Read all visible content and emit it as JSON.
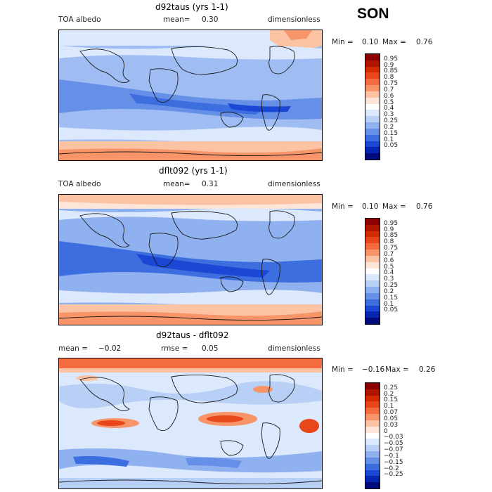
{
  "season": "SON",
  "panels": [
    {
      "title": "d92taus (yrs 1-1)",
      "left_label": "TOA albedo",
      "stat_label": "mean=",
      "stat_value": "0.30",
      "units": "dimensionless",
      "minmax": {
        "min_label": "Min =",
        "min": "0.10",
        "max_label": "Max =",
        "max": "0.76"
      },
      "colorbar": {
        "ticks": [
          "0.95",
          "0.9",
          "0.85",
          "0.8",
          "0.75",
          "0.7",
          "0.6",
          "0.5",
          "0.4",
          "0.3",
          "0.25",
          "0.2",
          "0.15",
          "0.1",
          "0.05"
        ],
        "colors": [
          "#8b0000",
          "#b01500",
          "#d42a00",
          "#e8471c",
          "#f36b3f",
          "#f89568",
          "#fbc3a3",
          "#fde6d8",
          "#ffffff",
          "#dce8fb",
          "#b8cff6",
          "#8fb1f0",
          "#6690e8",
          "#3d6ee0",
          "#1a48d4",
          "#0726b0",
          "#000a7a"
        ]
      },
      "chart_data": {
        "type": "heatmap",
        "title": "d92taus (yrs 1-1)",
        "variable": "TOA albedo",
        "mean": 0.3,
        "min": 0.1,
        "max": 0.76,
        "units": "dimensionless"
      }
    },
    {
      "title": "dflt092 (yrs 1-1)",
      "left_label": "TOA albedo",
      "stat_label": "mean=",
      "stat_value": "0.31",
      "units": "dimensionless",
      "minmax": {
        "min_label": "Min =",
        "min": "0.10",
        "max_label": "Max =",
        "max": "0.76"
      },
      "colorbar": {
        "ticks": [
          "0.95",
          "0.9",
          "0.85",
          "0.8",
          "0.75",
          "0.7",
          "0.6",
          "0.5",
          "0.4",
          "0.3",
          "0.25",
          "0.2",
          "0.15",
          "0.1",
          "0.05"
        ],
        "colors": [
          "#8b0000",
          "#b01500",
          "#d42a00",
          "#e8471c",
          "#f36b3f",
          "#f89568",
          "#fbc3a3",
          "#fde6d8",
          "#ffffff",
          "#dce8fb",
          "#b8cff6",
          "#8fb1f0",
          "#6690e8",
          "#3d6ee0",
          "#1a48d4",
          "#0726b0",
          "#000a7a"
        ]
      },
      "chart_data": {
        "type": "heatmap",
        "title": "dflt092 (yrs 1-1)",
        "variable": "TOA albedo",
        "mean": 0.31,
        "min": 0.1,
        "max": 0.76,
        "units": "dimensionless"
      }
    },
    {
      "title": "d92taus - dflt092",
      "left_label": "mean =",
      "left_value": "−0.02",
      "stat_label": "rmse =",
      "stat_value": "0.05",
      "units": "dimensionless",
      "minmax": {
        "min_label": "Min =",
        "min": "−0.16",
        "max_label": "Max =",
        "max": "0.26"
      },
      "colorbar": {
        "ticks": [
          "0.25",
          "0.2",
          "0.15",
          "0.1",
          "0.07",
          "0.05",
          "0.03",
          "0",
          "−0.03",
          "−0.05",
          "−0.07",
          "−0.1",
          "−0.15",
          "−0.2",
          "−0.25"
        ],
        "colors": [
          "#8b0000",
          "#b01500",
          "#d42a00",
          "#e8471c",
          "#f36b3f",
          "#f89568",
          "#fbc3a3",
          "#fde6d8",
          "#ffffff",
          "#dce8fb",
          "#b8cff6",
          "#8fb1f0",
          "#6690e8",
          "#3d6ee0",
          "#1a48d4",
          "#0726b0",
          "#000a7a"
        ]
      },
      "chart_data": {
        "type": "heatmap",
        "title": "d92taus - dflt092",
        "mean": -0.02,
        "rmse": 0.05,
        "min": -0.16,
        "max": 0.26,
        "units": "dimensionless"
      }
    }
  ]
}
